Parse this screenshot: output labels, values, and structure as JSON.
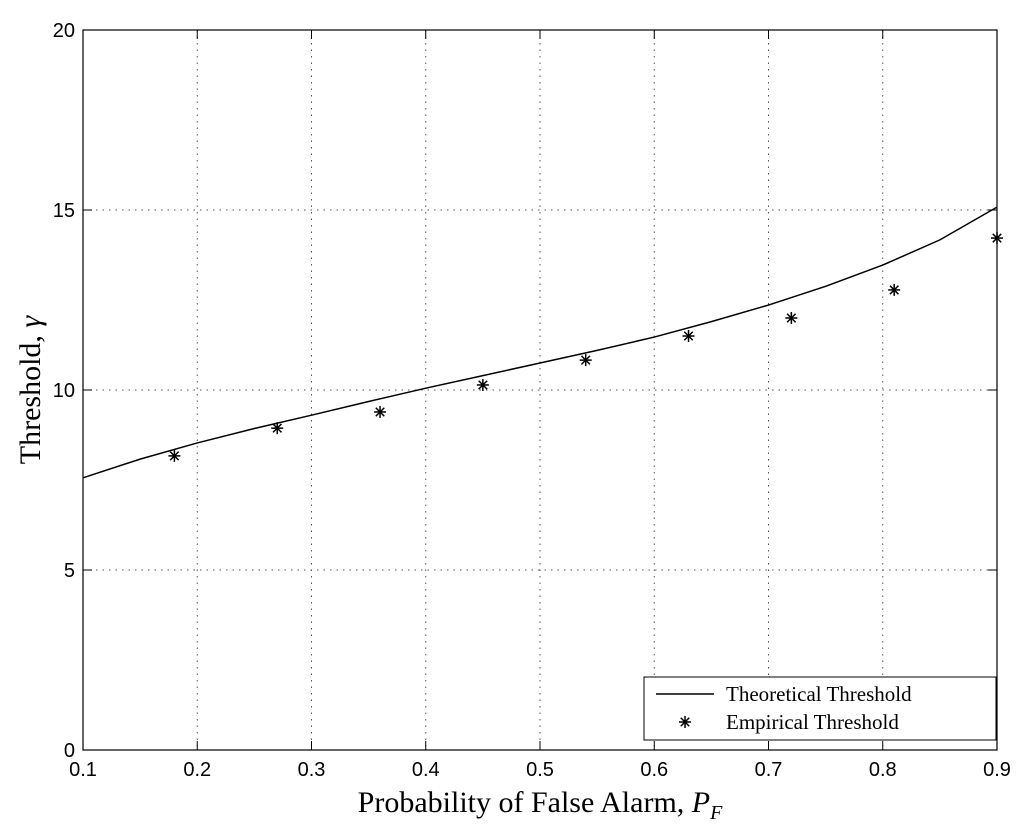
{
  "chart_data": {
    "type": "line",
    "x_label": {
      "text": "Probability of False Alarm,",
      "symbol": "P",
      "subscript": "F"
    },
    "y_label": {
      "text": "Threshold,",
      "symbol": "γ"
    },
    "xlim": [
      0.1,
      0.9
    ],
    "xticks": [
      0.1,
      0.2,
      0.3,
      0.4,
      0.5,
      0.6,
      0.7,
      0.8,
      0.9
    ],
    "ylim": [
      0,
      20
    ],
    "yticks": [
      0,
      5,
      10,
      15,
      20
    ],
    "grid": true,
    "legend_position": "lower right",
    "series": [
      {
        "name": "Theoretical Threshold",
        "color": "#000000",
        "style": "line",
        "x": [
          0.1,
          0.15,
          0.2,
          0.25,
          0.3,
          0.35,
          0.4,
          0.45,
          0.5,
          0.55,
          0.6,
          0.65,
          0.7,
          0.75,
          0.8,
          0.85,
          0.9
        ],
        "values": [
          7.56,
          8.08,
          8.53,
          8.93,
          9.3,
          9.68,
          10.05,
          10.4,
          10.75,
          11.1,
          11.47,
          11.9,
          12.36,
          12.88,
          13.47,
          14.17,
          15.08
        ]
      },
      {
        "name": "Empirical Threshold",
        "color": "#000000",
        "style": "marker",
        "x": [
          0.18,
          0.27,
          0.36,
          0.45,
          0.54,
          0.63,
          0.72,
          0.81,
          0.9
        ],
        "values": [
          8.17,
          8.94,
          9.39,
          10.14,
          10.83,
          11.5,
          12.0,
          12.78,
          14.22
        ]
      }
    ]
  }
}
